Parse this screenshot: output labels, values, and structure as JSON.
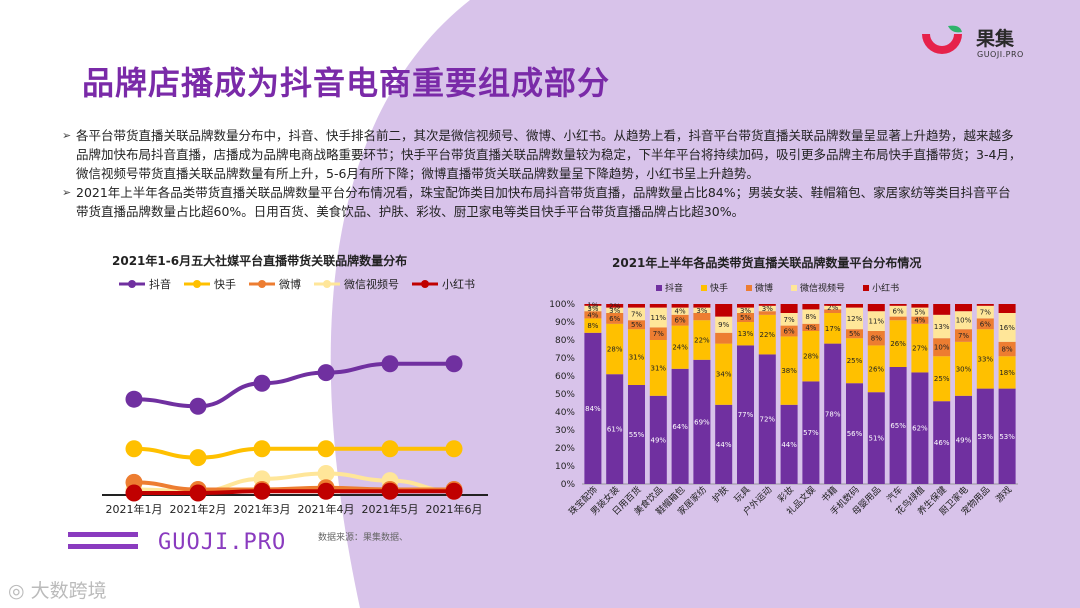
{
  "colors": {
    "accent": "#7a2aa8",
    "bg_purple": "#d8c3ea",
    "logo_red": "#e6224b",
    "douyin": "#7030a0",
    "kuaishou": "#ffc000",
    "weibo": "#ed7d31",
    "weixin": "#ffe699",
    "xiaohongshu": "#c00000"
  },
  "header": {
    "title": "品牌店播成为抖音电商重要组成部分",
    "brand_name": "果集",
    "brand_sub": "GUOJI.PRO"
  },
  "bullets": [
    "各平台带货直播关联品牌数量分布中，抖音、快手排名前二，其次是微信视频号、微博、小红书。从趋势上看，抖音平台带货直播关联品牌数量呈显著上升趋势，越来越多品牌加快布局抖音直播，店播成为品牌电商战略重要环节；快手平台带货直播关联品牌数量较为稳定，下半年平台将持续加码，吸引更多品牌主布局快手直播带货；3-4月，微信视频号带货直播关联品牌数量有所上升，5-6月有所下降；微博直播带货关联品牌数量呈下降趋势，小红书呈上升趋势。",
    "2021年上半年各品类带货直播关联品牌数量平台分布情况看，珠宝配饰类目加快布局抖音带货直播，品牌数量占比84%；男装女装、鞋帽箱包、家居家纺等类目抖音平台带货直播品牌数量占比超60%。日用百货、美食饮品、护肤、彩妆、厨卫家电等类目快手平台带货直播品牌占比超30%。"
  ],
  "bullet_mark": "➢",
  "footer": {
    "guoji_text": "GUOJI.PRO",
    "source": "数据来源：果集数据、",
    "bottom_logo": "大数跨境"
  },
  "chart_data": [
    {
      "type": "line",
      "title": "2021年1-6月五大社媒平台直播带货关联品牌数量分布",
      "x": [
        "2021年1月",
        "2021年2月",
        "2021年3月",
        "2021年4月",
        "2021年5月",
        "2021年6月"
      ],
      "series": [
        {
          "name": "抖音",
          "color": "#7030a0",
          "values": [
            53,
            49,
            62,
            68,
            73,
            73
          ]
        },
        {
          "name": "快手",
          "color": "#ffc000",
          "values": [
            25,
            20,
            25,
            25,
            25,
            25
          ]
        },
        {
          "name": "微博",
          "color": "#ed7d31",
          "values": [
            6,
            2,
            2,
            3,
            2,
            2
          ]
        },
        {
          "name": "微信视频号",
          "color": "#ffe699",
          "values": [
            2,
            1,
            8,
            11,
            7,
            1
          ]
        },
        {
          "name": "小红书",
          "color": "#c00000",
          "values": [
            0,
            0,
            1,
            1,
            1,
            1
          ]
        }
      ],
      "ylim": [
        0,
        100
      ],
      "grid": false,
      "legend": "top"
    },
    {
      "type": "bar",
      "stacked": true,
      "title": "2021年上半年各品类带货直播关联品牌数量平台分布情况",
      "categories": [
        "珠宝配饰",
        "男装女装",
        "日用百货",
        "美食饮品",
        "鞋帽箱包",
        "家居家纺",
        "护肤",
        "玩具",
        "户外运动",
        "彩妆",
        "礼品文娱",
        "书籍",
        "手机数码",
        "母婴用品",
        "汽车",
        "花鸟绿植",
        "养生保健",
        "厨卫家电",
        "宠物用品",
        "游戏"
      ],
      "series": [
        {
          "name": "抖音",
          "color": "#7030a0",
          "values": [
            84,
            61,
            55,
            49,
            64,
            69,
            44,
            77,
            72,
            44,
            57,
            78,
            56,
            51,
            65,
            62,
            46,
            49,
            53,
            53
          ]
        },
        {
          "name": "快手",
          "color": "#ffc000",
          "values": [
            8,
            28,
            31,
            31,
            24,
            22,
            34,
            13,
            22,
            38,
            28,
            17,
            25,
            26,
            26,
            27,
            25,
            30,
            33,
            18
          ]
        },
        {
          "name": "微博",
          "color": "#ed7d31",
          "values": [
            4,
            6,
            5,
            7,
            6,
            4,
            6,
            5,
            2,
            6,
            4,
            2,
            5,
            8,
            2,
            4,
            10,
            7,
            6,
            8
          ]
        },
        {
          "name": "微信视频号",
          "color": "#ffe699",
          "values": [
            3,
            3,
            7,
            11,
            4,
            3,
            9,
            3,
            3,
            7,
            8,
            2,
            12,
            11,
            6,
            5,
            13,
            10,
            7,
            16
          ]
        },
        {
          "name": "小红书",
          "color": "#c00000",
          "values": [
            1,
            2,
            2,
            2,
            2,
            2,
            7,
            2,
            1,
            5,
            3,
            1,
            2,
            4,
            1,
            2,
            6,
            4,
            1,
            5
          ]
        }
      ],
      "labels_shown": {
        "抖音": [
          84,
          61,
          55,
          49,
          64,
          69,
          44,
          77,
          72,
          44,
          57,
          78,
          56,
          51,
          65,
          62,
          46,
          49,
          53,
          53
        ],
        "快手": [
          8,
          28,
          31,
          31,
          24,
          22,
          34,
          13,
          22,
          38,
          28,
          17,
          25,
          26,
          26,
          27,
          25,
          30,
          33,
          18
        ],
        "微博": [
          4,
          6,
          5,
          7,
          6,
          null,
          null,
          5,
          null,
          6,
          4,
          null,
          5,
          8,
          null,
          4,
          10,
          7,
          6,
          8
        ],
        "微信视频号": [
          3,
          3,
          7,
          11,
          4,
          3,
          9,
          3,
          3,
          7,
          8,
          2,
          12,
          11,
          6,
          5,
          13,
          10,
          7,
          16
        ],
        "小红书": [
          1,
          2,
          null,
          null,
          null,
          null,
          null,
          null,
          null,
          null,
          null,
          null,
          null,
          null,
          null,
          null,
          null,
          null,
          null,
          null
        ]
      },
      "yticks": [
        "0%",
        "10%",
        "20%",
        "30%",
        "40%",
        "50%",
        "60%",
        "70%",
        "80%",
        "90%",
        "100%"
      ],
      "ylim": [
        0,
        100
      ],
      "legend": "top"
    }
  ]
}
